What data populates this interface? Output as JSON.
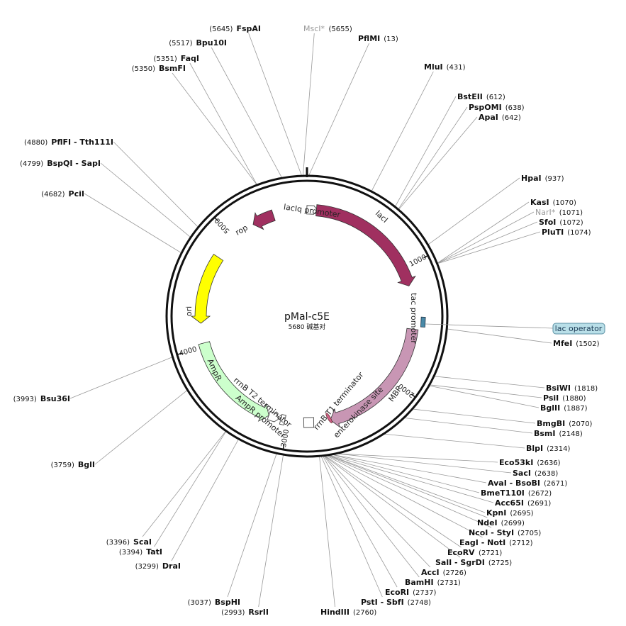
{
  "plasmid": {
    "name": "pMal-c5E",
    "length": 5680,
    "length_text": "5680 碱基对"
  },
  "ticks": [
    {
      "pos": 1000,
      "label": "1000"
    },
    {
      "pos": 2000,
      "label": "2000"
    },
    {
      "pos": 3000,
      "label": "3000"
    },
    {
      "pos": 4000,
      "label": "4000"
    },
    {
      "pos": 5000,
      "label": "5000"
    }
  ],
  "features": [
    {
      "id": "lacIq-promoter",
      "label": "lacIq promoter",
      "start": 2,
      "end": 79,
      "type": "promoter",
      "dir": 1,
      "color": "#ffffff",
      "label_pos": 160
    },
    {
      "id": "lacI",
      "label": "lacI",
      "start": 80,
      "end": 1160,
      "type": "cds",
      "dir": 1,
      "color": "#a03060",
      "label_pos": 500,
      "label_inside": true
    },
    {
      "id": "tac-promoter",
      "label": "tac promoter",
      "start": 1230,
      "end": 1440,
      "type": "label",
      "dir": 1,
      "color": "#ffffff",
      "label_pos": 1330
    },
    {
      "id": "lac-operator",
      "label": "lac operator",
      "start": 1455,
      "end": 1480,
      "type": "operator",
      "dir": 1,
      "color": "#4a8aa8",
      "label_pos": 1466
    },
    {
      "id": "MBP",
      "label": "MBP",
      "start": 1530,
      "end": 2640,
      "type": "cds",
      "dir": 1,
      "color": "#c896b4",
      "label_pos": 2300,
      "label_inside": true
    },
    {
      "id": "enterokinase-site",
      "label": "enterokinase site",
      "start": 2640,
      "end": 2655,
      "type": "site",
      "dir": 1,
      "color": "#d06088",
      "label_pos": 2620
    },
    {
      "id": "rrnB-T1-terminator",
      "label": "rrnB T1 terminator",
      "start": 2790,
      "end": 2860,
      "type": "terminator",
      "dir": 1,
      "color": "#ffffff",
      "label_pos": 2840
    },
    {
      "id": "rrnB-T2-terminator",
      "label": "rrnB T2 terminator",
      "start": 3035,
      "end": 3060,
      "type": "terminator",
      "dir": 1,
      "color": "#ffffff",
      "label_pos": 3280
    },
    {
      "id": "AmpR-promoter",
      "label": "AmpR promoter",
      "start": 3090,
      "end": 3170,
      "type": "promoter",
      "dir": -1,
      "color": "#ffffff",
      "label_pos": 3270
    },
    {
      "id": "AmpR",
      "label": "AmpR",
      "start": 3171,
      "end": 4030,
      "type": "cds",
      "dir": -1,
      "color": "#ccffcc",
      "label_pos": 3850
    },
    {
      "id": "ori",
      "label": "ori",
      "start": 4200,
      "end": 4790,
      "type": "cds",
      "dir": -1,
      "color": "#ffff00",
      "label_pos": 4500,
      "label_inside": true
    },
    {
      "id": "rop",
      "label": "rop",
      "start": 5200,
      "end": 5390,
      "type": "cds",
      "dir": -1,
      "color": "#a03060",
      "label_pos": 5290
    }
  ],
  "enzymes": [
    {
      "name": "FspAI",
      "pos_text": "(5645)",
      "pos": 5645,
      "side": "left",
      "grey": false
    },
    {
      "name": "MscI*",
      "pos_text": "(5655)",
      "pos": 5655,
      "side": "right",
      "grey": true
    },
    {
      "name": "PflMI",
      "pos_text": "(13)",
      "pos": 13,
      "side": "right",
      "grey": false
    },
    {
      "name": "Bpu10I",
      "pos_text": "(5517)",
      "pos": 5517,
      "side": "left",
      "grey": false
    },
    {
      "name": "FaqI",
      "pos_text": "(5351)",
      "pos": 5351,
      "side": "left",
      "grey": false
    },
    {
      "name": "BsmFI",
      "pos_text": "(5350)",
      "pos": 5350,
      "side": "left",
      "grey": false
    },
    {
      "name": "MluI",
      "pos_text": "(431)",
      "pos": 431,
      "side": "right",
      "grey": false
    },
    {
      "name": "BstEII",
      "pos_text": "(612)",
      "pos": 612,
      "side": "right",
      "grey": false
    },
    {
      "name": "PspOMI",
      "pos_text": "(638)",
      "pos": 638,
      "side": "right",
      "grey": false
    },
    {
      "name": "ApaI",
      "pos_text": "(642)",
      "pos": 642,
      "side": "right",
      "grey": false
    },
    {
      "name": "PflFI - Tth111I",
      "pos_text": "(4880)",
      "pos": 4880,
      "side": "left",
      "grey": false
    },
    {
      "name": "BspQI - SapI",
      "pos_text": "(4799)",
      "pos": 4799,
      "side": "left",
      "grey": false
    },
    {
      "name": "HpaI",
      "pos_text": "(937)",
      "pos": 937,
      "side": "right",
      "grey": false
    },
    {
      "name": "PciI",
      "pos_text": "(4682)",
      "pos": 4682,
      "side": "left",
      "grey": false
    },
    {
      "name": "KasI",
      "pos_text": "(1070)",
      "pos": 1070,
      "side": "right",
      "grey": false
    },
    {
      "name": "NarI*",
      "pos_text": "(1071)",
      "pos": 1071,
      "side": "right",
      "grey": true
    },
    {
      "name": "SfoI",
      "pos_text": "(1072)",
      "pos": 1072,
      "side": "right",
      "grey": false
    },
    {
      "name": "PluTI",
      "pos_text": "(1074)",
      "pos": 1074,
      "side": "right",
      "grey": false
    },
    {
      "name": "MfeI",
      "pos_text": "(1502)",
      "pos": 1502,
      "side": "right",
      "grey": false
    },
    {
      "name": "BsiWI",
      "pos_text": "(1818)",
      "pos": 1818,
      "side": "right",
      "grey": false
    },
    {
      "name": "PsiI",
      "pos_text": "(1880)",
      "pos": 1880,
      "side": "right",
      "grey": false
    },
    {
      "name": "BglII",
      "pos_text": "(1887)",
      "pos": 1887,
      "side": "right",
      "grey": false
    },
    {
      "name": "Bsu36I",
      "pos_text": "(3993)",
      "pos": 3993,
      "side": "left",
      "grey": false
    },
    {
      "name": "BmgBI",
      "pos_text": "(2070)",
      "pos": 2070,
      "side": "right",
      "grey": false
    },
    {
      "name": "BsmI",
      "pos_text": "(2148)",
      "pos": 2148,
      "side": "right",
      "grey": false
    },
    {
      "name": "BlpI",
      "pos_text": "(2314)",
      "pos": 2314,
      "side": "right",
      "grey": false
    },
    {
      "name": "Eco53kI",
      "pos_text": "(2636)",
      "pos": 2636,
      "side": "right",
      "grey": false
    },
    {
      "name": "SacI",
      "pos_text": "(2638)",
      "pos": 2638,
      "side": "right",
      "grey": false
    },
    {
      "name": "BglI",
      "pos_text": "(3759)",
      "pos": 3759,
      "side": "left",
      "grey": false
    },
    {
      "name": "AvaI - BsoBI",
      "pos_text": "(2671)",
      "pos": 2671,
      "side": "right",
      "grey": false
    },
    {
      "name": "BmeT110I",
      "pos_text": "(2672)",
      "pos": 2672,
      "side": "right",
      "grey": false
    },
    {
      "name": "Acc65I",
      "pos_text": "(2691)",
      "pos": 2691,
      "side": "right",
      "grey": false
    },
    {
      "name": "KpnI",
      "pos_text": "(2695)",
      "pos": 2695,
      "side": "right",
      "grey": false
    },
    {
      "name": "NdeI",
      "pos_text": "(2699)",
      "pos": 2699,
      "side": "right",
      "grey": false
    },
    {
      "name": "NcoI - StyI",
      "pos_text": "(2705)",
      "pos": 2705,
      "side": "right",
      "grey": false
    },
    {
      "name": "EagI - NotI",
      "pos_text": "(2712)",
      "pos": 2712,
      "side": "right",
      "grey": false
    },
    {
      "name": "ScaI",
      "pos_text": "(3396)",
      "pos": 3396,
      "side": "left",
      "grey": false
    },
    {
      "name": "TatI",
      "pos_text": "(3394)",
      "pos": 3394,
      "side": "left",
      "grey": false
    },
    {
      "name": "EcoRV",
      "pos_text": "(2721)",
      "pos": 2721,
      "side": "right",
      "grey": false
    },
    {
      "name": "SalI - SgrDI",
      "pos_text": "(2725)",
      "pos": 2725,
      "side": "right",
      "grey": false
    },
    {
      "name": "DraI",
      "pos_text": "(3299)",
      "pos": 3299,
      "side": "left",
      "grey": false
    },
    {
      "name": "AccI",
      "pos_text": "(2726)",
      "pos": 2726,
      "side": "right",
      "grey": false
    },
    {
      "name": "BamHI",
      "pos_text": "(2731)",
      "pos": 2731,
      "side": "right",
      "grey": false
    },
    {
      "name": "EcoRI",
      "pos_text": "(2737)",
      "pos": 2737,
      "side": "right",
      "grey": false
    },
    {
      "name": "BspHI",
      "pos_text": "(3037)",
      "pos": 3037,
      "side": "left",
      "grey": false
    },
    {
      "name": "PstI - SbfI",
      "pos_text": "(2748)",
      "pos": 2748,
      "side": "right",
      "grey": false
    },
    {
      "name": "RsrII",
      "pos_text": "(2993)",
      "pos": 2993,
      "side": "left",
      "grey": false
    },
    {
      "name": "HindIII",
      "pos_text": "(2760)",
      "pos": 2760,
      "side": "right",
      "grey": false
    }
  ]
}
